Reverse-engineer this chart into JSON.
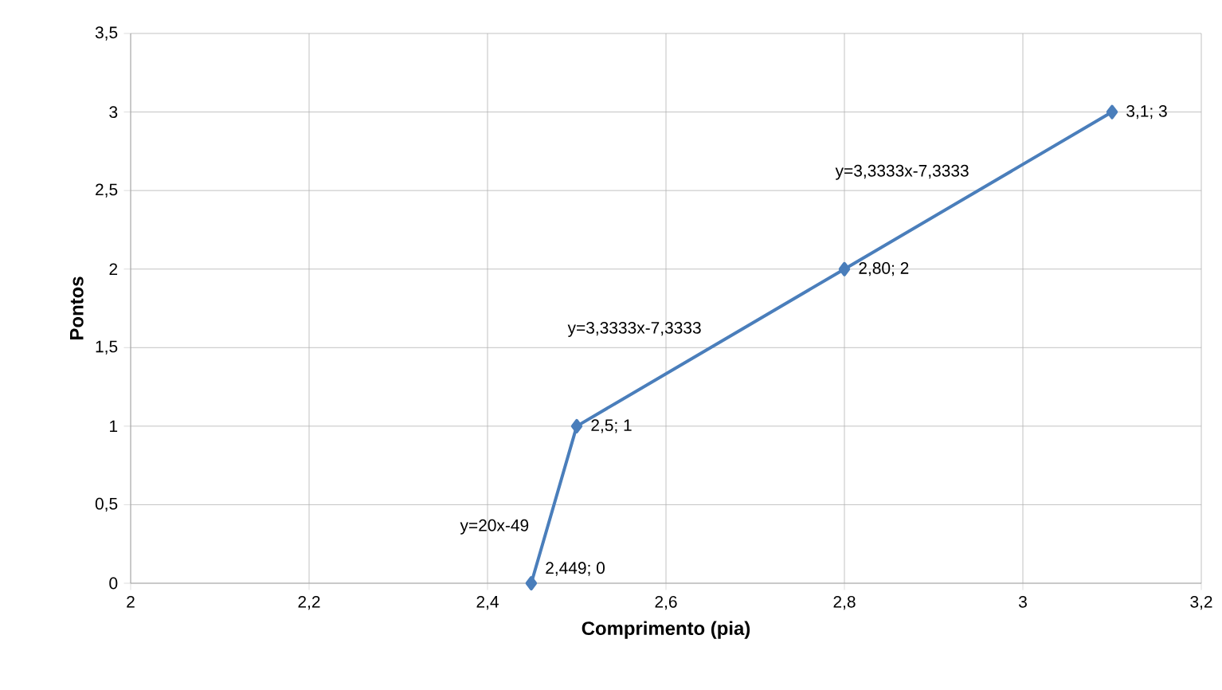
{
  "chart_data": {
    "type": "line",
    "xlabel": "Comprimento (pia)",
    "ylabel": "Pontos",
    "x": [
      2.449,
      2.5,
      2.8,
      3.1
    ],
    "series": [
      {
        "color": "#4a7ebb",
        "values": [
          0,
          1,
          2,
          3
        ],
        "value_labels": [
          "2,449; 0",
          "2,5; 1",
          "2,80; 2",
          "3,1; 3"
        ]
      }
    ],
    "xlim": [
      2,
      3.2
    ],
    "xticks": [
      2,
      {
        "value": 2.2,
        "label": "2,2"
      },
      {
        "value": 2.4,
        "label": "2,4"
      },
      {
        "value": 2.6,
        "label": "2,6"
      },
      {
        "value": 2.8,
        "label": "2,8"
      },
      3,
      {
        "value": 3.2,
        "label": "3,2"
      }
    ],
    "ylim": [
      0,
      3.5
    ],
    "yticks": [
      0,
      {
        "value": 0.5,
        "label": "0,5"
      },
      1,
      {
        "value": 1.5,
        "label": "1,5"
      },
      2,
      {
        "value": 2.5,
        "label": "2,5"
      },
      3,
      {
        "value": 3.5,
        "label": "3,5"
      }
    ],
    "annotations": [
      "y=20x-49",
      "y=3,3333x-7,3333",
      "y=3,3333x-7,3333"
    ],
    "grid": true,
    "marker": "diamond",
    "line_style": "solid"
  }
}
